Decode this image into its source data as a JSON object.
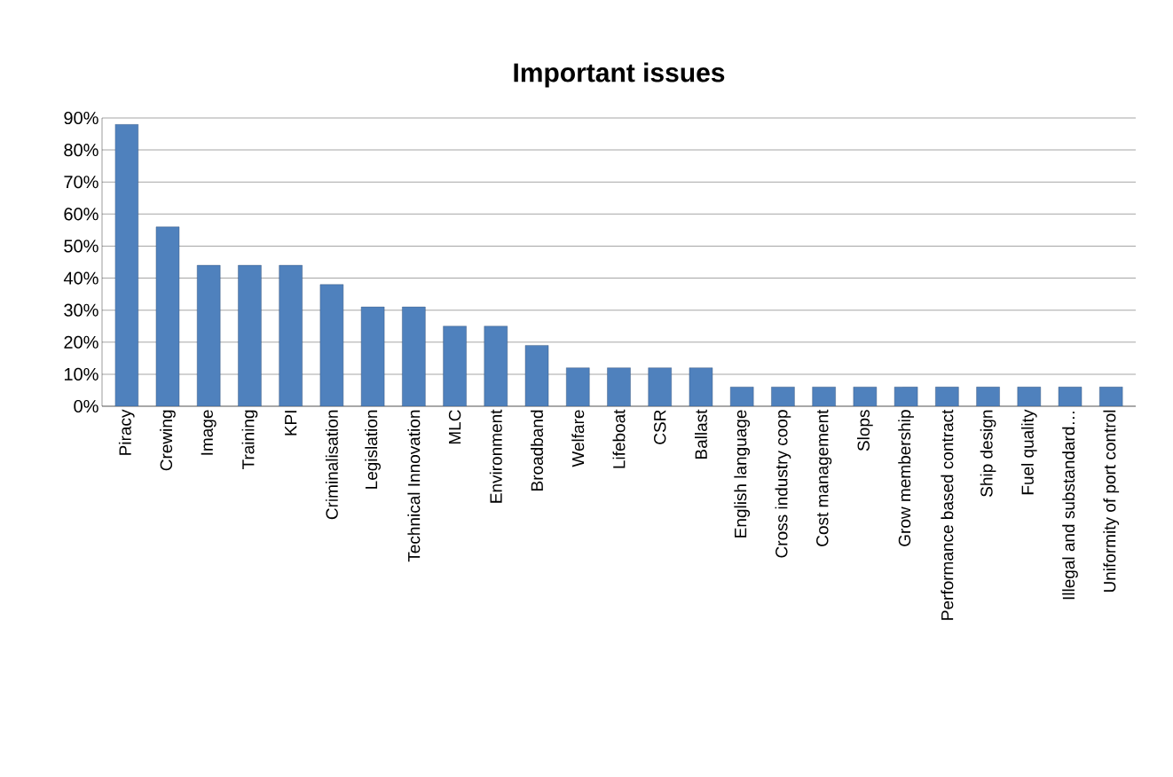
{
  "chart_data": {
    "type": "bar",
    "title": "Important issues",
    "categories": [
      "Piracy",
      "Crewing",
      "Image",
      "Training",
      "KPI",
      "Criminalisation",
      "Legislation",
      "Technical Innovation",
      "MLC",
      "Environment",
      "Broadband",
      "Welfare",
      "Lifeboat",
      "CSR",
      "Ballast",
      "English language",
      "Cross industry coop",
      "Cost management",
      "Slops",
      "Grow membership",
      "Performance based contract",
      "Ship design",
      "Fuel quality",
      "Illegal and substandard…",
      "Uniformity of port control"
    ],
    "values": [
      88,
      56,
      44,
      44,
      44,
      38,
      31,
      31,
      25,
      25,
      19,
      12,
      12,
      12,
      12,
      6,
      6,
      6,
      6,
      6,
      6,
      6,
      6,
      6,
      6
    ],
    "color": "#4f81bd",
    "ylim": [
      0,
      90
    ],
    "yticks": [
      {
        "value": 0,
        "label": "0%"
      },
      {
        "value": 10,
        "label": "10%"
      },
      {
        "value": 20,
        "label": "20%"
      },
      {
        "value": 30,
        "label": "30%"
      },
      {
        "value": 40,
        "label": "40%"
      },
      {
        "value": 50,
        "label": "50%"
      },
      {
        "value": 60,
        "label": "60%"
      },
      {
        "value": 70,
        "label": "70%"
      },
      {
        "value": 80,
        "label": "80%"
      },
      {
        "value": 90,
        "label": "90%"
      }
    ],
    "grid": "y"
  }
}
